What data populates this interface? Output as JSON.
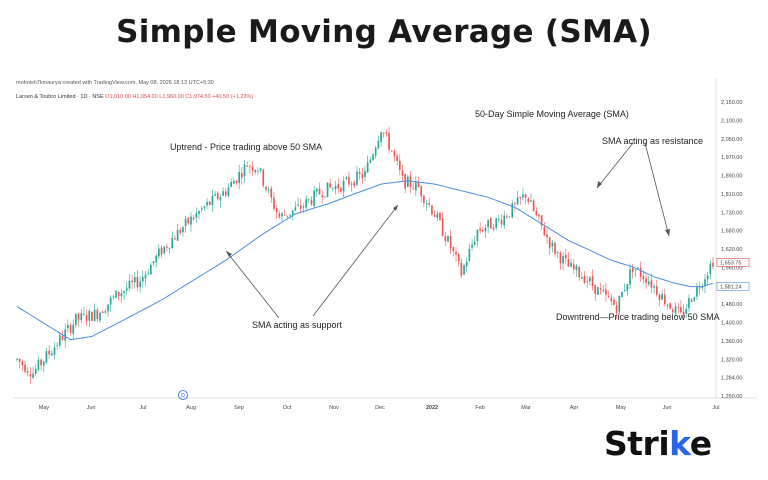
{
  "page": {
    "title": "Simple Moving Average (SMA)",
    "brand_text": "Strike",
    "brand_accent_color": "#2a64e8"
  },
  "header": {
    "attribution": "mohnish7kmaurya created with TradingView.com, May 08, 2026 18:13 UTC+5:30",
    "symbol": "Larsen & Toubro Limited · 1D · NSE",
    "ohlc": "O1,010.00 H1,054.00 L1,960.00 C1,974.50 +40.50 (+1.23%)"
  },
  "chart_data": {
    "type": "candlestick",
    "title": "50-Day Simple Moving Average (SMA)",
    "y_ticks": [
      "2,150.00",
      "2,100.00",
      "2,050.00",
      "1,970.00",
      "1,890.00",
      "1,810.00",
      "1,730.00",
      "1,680.00",
      "1,620.00",
      "1,560.00",
      "1,520.00",
      "1,480.00",
      "1,400.00",
      "1,360.00",
      "1,320.00",
      "1,284.00",
      "1,250.00"
    ],
    "x_ticks": [
      "May",
      "Jun",
      "Jul",
      "Aug",
      "Sep",
      "Oct",
      "Nov",
      "Dec",
      "2022",
      "Feb",
      "Mar",
      "Apr",
      "May",
      "Jun",
      "Jul"
    ],
    "price_labels": [
      {
        "text": "1,653.75",
        "color": "#e04848",
        "value": 1653.75
      },
      {
        "text": "1,581.24",
        "color": "#4a8fe0",
        "value": 1581.24
      }
    ],
    "ylim": [
      1250,
      2150
    ],
    "colors": {
      "up": "#26a69a",
      "down": "#ef5350",
      "sma": "#4a8fe0"
    },
    "price_path": [
      [
        0,
        1360
      ],
      [
        6,
        1320
      ],
      [
        14,
        1400
      ],
      [
        22,
        1480
      ],
      [
        30,
        1500
      ],
      [
        38,
        1560
      ],
      [
        46,
        1600
      ],
      [
        54,
        1690
      ],
      [
        62,
        1760
      ],
      [
        70,
        1820
      ],
      [
        78,
        1870
      ],
      [
        86,
        1950
      ],
      [
        90,
        1940
      ],
      [
        94,
        1860
      ],
      [
        98,
        1790
      ],
      [
        106,
        1820
      ],
      [
        114,
        1870
      ],
      [
        122,
        1890
      ],
      [
        130,
        1920
      ],
      [
        136,
        2060
      ],
      [
        140,
        1990
      ],
      [
        144,
        1900
      ],
      [
        150,
        1880
      ],
      [
        156,
        1800
      ],
      [
        162,
        1700
      ],
      [
        166,
        1620
      ],
      [
        172,
        1750
      ],
      [
        180,
        1780
      ],
      [
        186,
        1820
      ],
      [
        190,
        1860
      ],
      [
        194,
        1790
      ],
      [
        200,
        1700
      ],
      [
        206,
        1640
      ],
      [
        212,
        1610
      ],
      [
        218,
        1560
      ],
      [
        224,
        1520
      ],
      [
        230,
        1640
      ],
      [
        236,
        1600
      ],
      [
        242,
        1540
      ],
      [
        248,
        1490
      ],
      [
        252,
        1550
      ],
      [
        256,
        1600
      ],
      [
        260,
        1660
      ]
    ],
    "sma_path": [
      [
        0,
        1520
      ],
      [
        10,
        1470
      ],
      [
        20,
        1420
      ],
      [
        28,
        1430
      ],
      [
        40,
        1480
      ],
      [
        54,
        1540
      ],
      [
        66,
        1600
      ],
      [
        78,
        1660
      ],
      [
        92,
        1740
      ],
      [
        104,
        1800
      ],
      [
        116,
        1830
      ],
      [
        126,
        1860
      ],
      [
        136,
        1890
      ],
      [
        146,
        1900
      ],
      [
        156,
        1890
      ],
      [
        166,
        1870
      ],
      [
        176,
        1850
      ],
      [
        186,
        1820
      ],
      [
        196,
        1770
      ],
      [
        206,
        1720
      ],
      [
        214,
        1690
      ],
      [
        222,
        1660
      ],
      [
        230,
        1640
      ],
      [
        238,
        1610
      ],
      [
        246,
        1590
      ],
      [
        252,
        1580
      ],
      [
        256,
        1581
      ],
      [
        260,
        1590
      ]
    ],
    "annotations": [
      {
        "text": "50-Day Simple Moving Average (SMA)"
      },
      {
        "text": "Uptrend - Price trading above 50 SMA"
      },
      {
        "text": "SMA acting as resistance"
      },
      {
        "text": "SMA acting as support"
      },
      {
        "text": "Downtrend—Price trading below 50 SMA"
      }
    ]
  }
}
